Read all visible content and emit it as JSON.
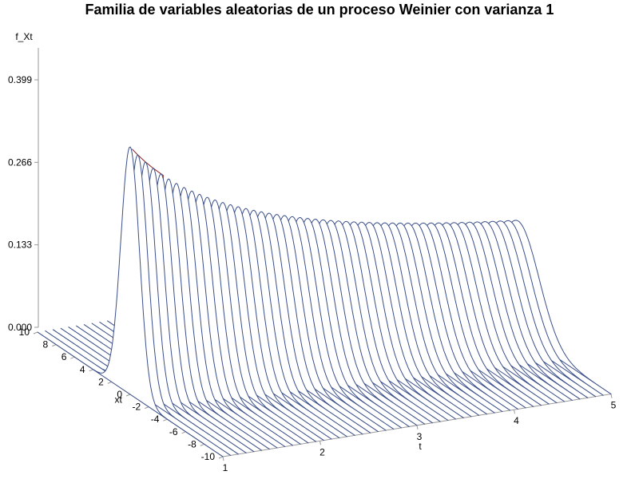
{
  "chart_data": {
    "type": "surface-waterfall",
    "title": "Familia de variables aleatorias de un proceso Weinier con varianza 1",
    "zlabel": "f_Xt",
    "xlabel": "xt",
    "tlabel": "t",
    "z_ticks": [
      "0.000",
      "0.133",
      "0.266",
      "0.399"
    ],
    "xt_ticks": [
      "-10",
      "-8",
      "-6",
      "-4",
      "-2",
      "0",
      "2",
      "4",
      "6",
      "8",
      "10"
    ],
    "t_ticks": [
      "1",
      "2",
      "3",
      "4",
      "5"
    ],
    "t_range": [
      1,
      5
    ],
    "xt_range": [
      -10,
      10
    ],
    "z_range": [
      0,
      0.399
    ],
    "variance": 1,
    "colors": {
      "curve": "#3b4f8a",
      "hidden": "#8b1a1a",
      "axis": "#9a9a9a"
    }
  }
}
